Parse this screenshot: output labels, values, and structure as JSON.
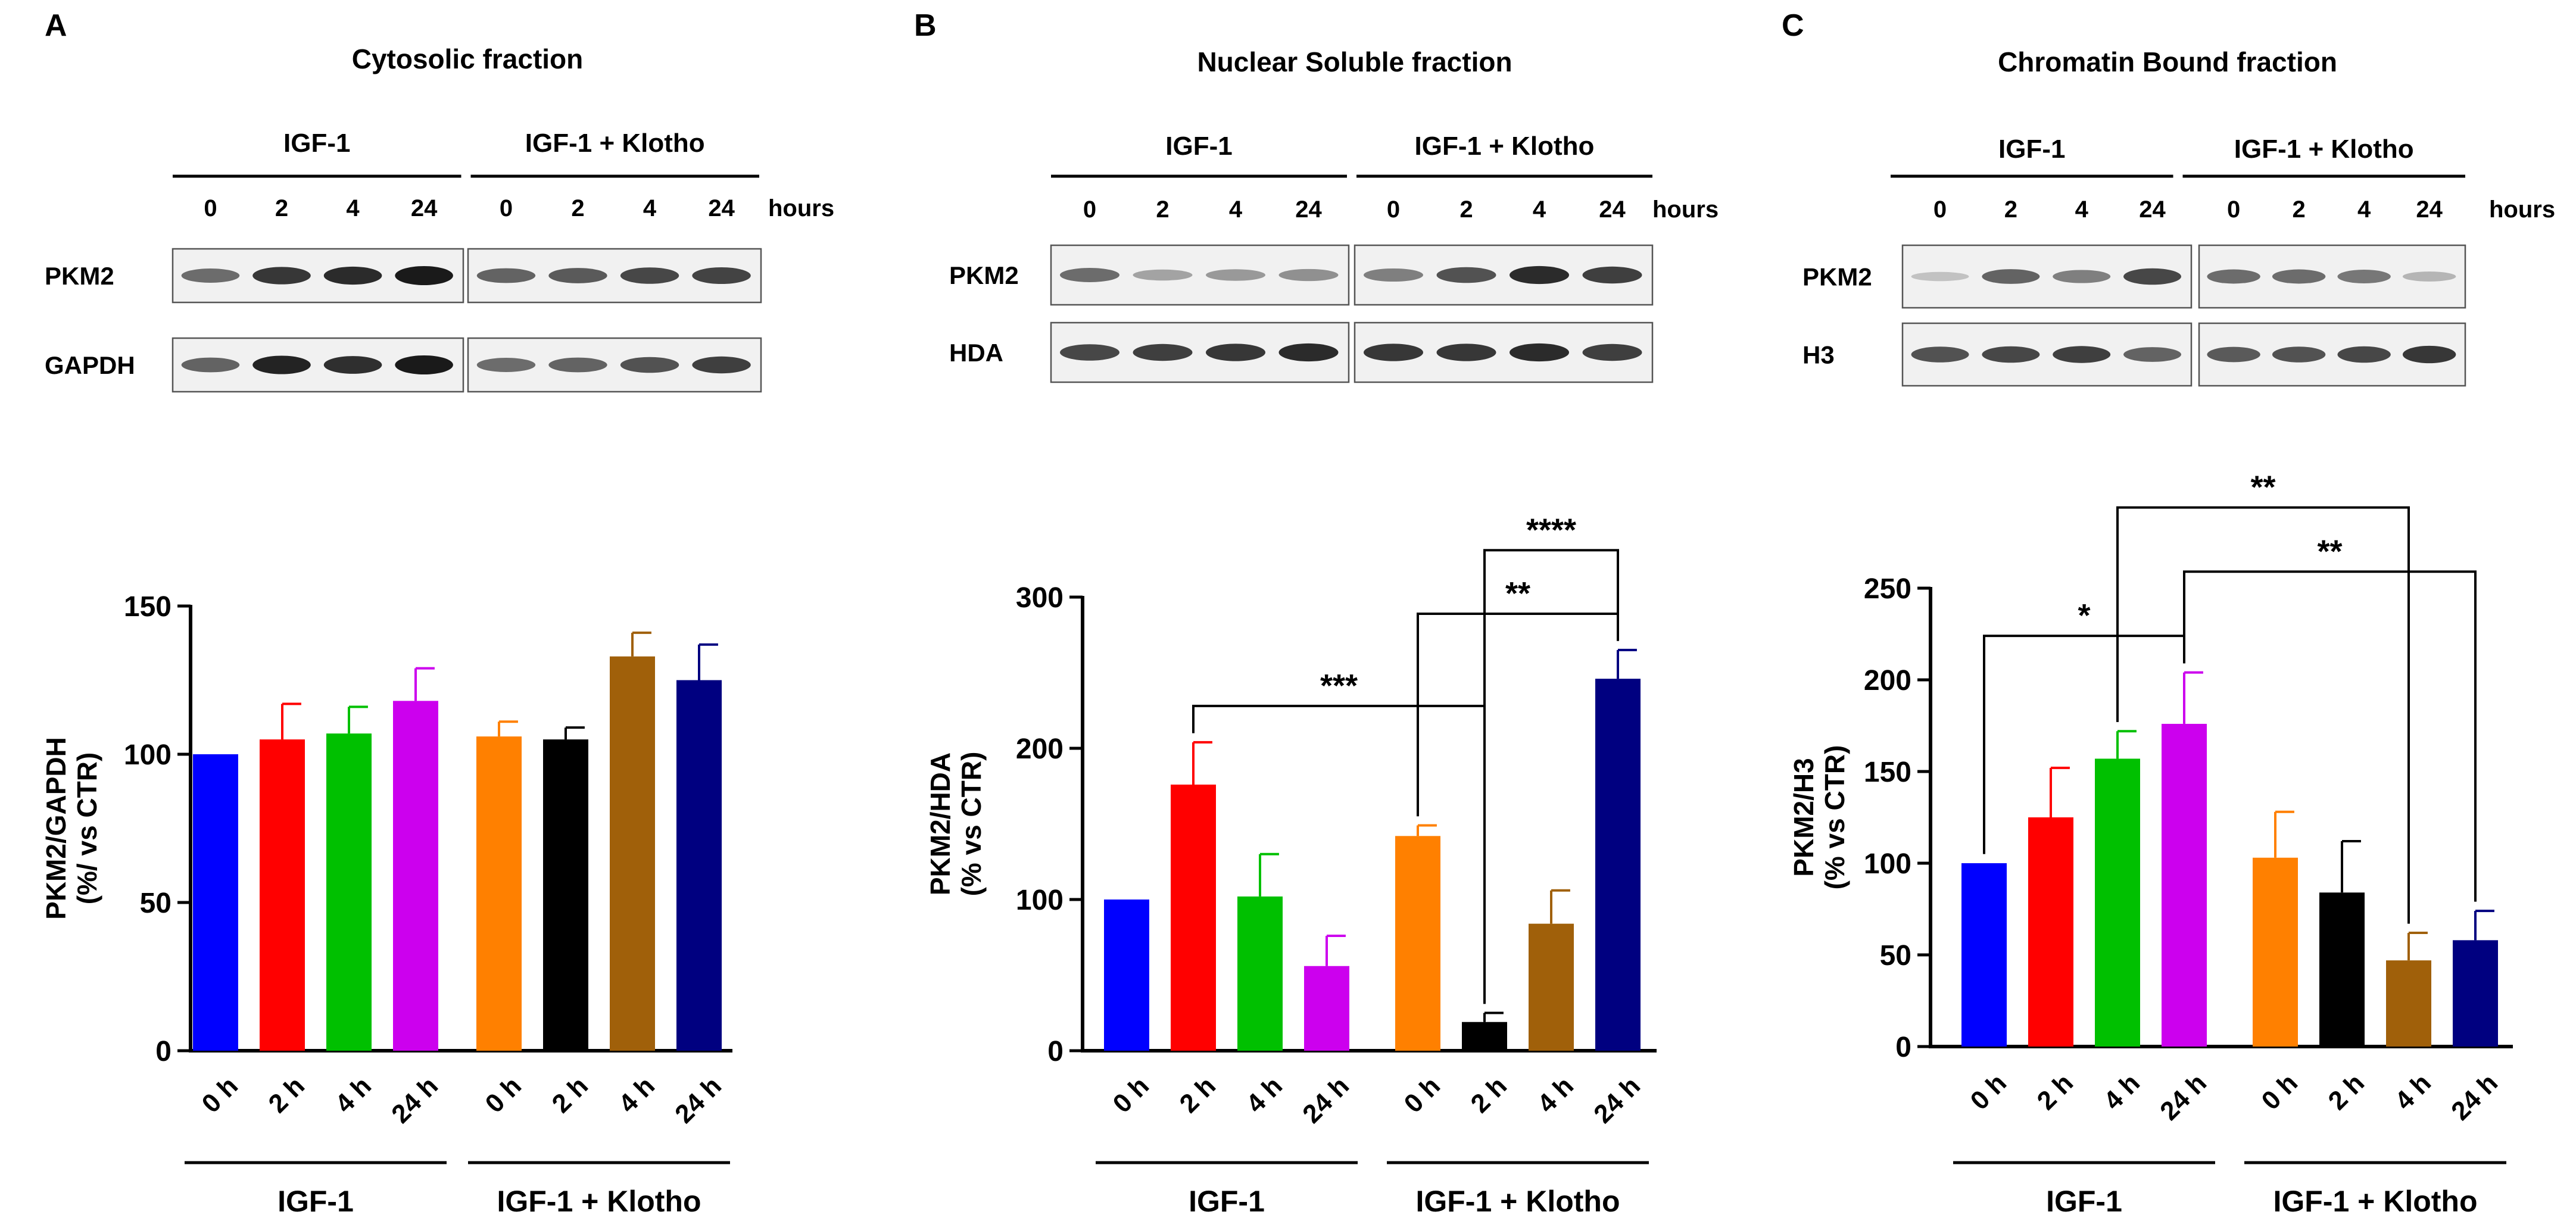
{
  "legend_letters": [
    "A",
    "B",
    "C"
  ],
  "conditions": [
    "IGF-1",
    "IGF-1 + Klotho"
  ],
  "blot_time_labels": [
    "0",
    "2",
    "4",
    "24"
  ],
  "blot_time_unit": "hours",
  "colors": [
    "#0000ff",
    "#ff0000",
    "#00c000",
    "#cc00ee",
    "#ff8000",
    "#000000",
    "#a0600a",
    "#000080"
  ],
  "panels": [
    {
      "letter": "A",
      "blot": {
        "title": "Cytosolic fraction",
        "row_labels": [
          "PKM2",
          "GAPDH"
        ],
        "band_intensity": [
          [
            0.55,
            0.85,
            0.9,
            1.0,
            0.6,
            0.65,
            0.75,
            0.78
          ],
          [
            0.6,
            0.95,
            0.88,
            1.0,
            0.55,
            0.6,
            0.7,
            0.8
          ]
        ]
      },
      "chart_data": {
        "type": "bar",
        "title": "",
        "ylabel_lines": [
          "PKM2/GAPDH",
          "(%/ vs CTR)"
        ],
        "categories": [
          "0 h",
          "2 h",
          "4 h",
          "24 h",
          "0 h",
          "2 h",
          "4 h",
          "24 h"
        ],
        "groups": [
          {
            "name": "IGF-1",
            "indices": [
              0,
              1,
              2,
              3
            ]
          },
          {
            "name": "IGF-1 + Klotho",
            "indices": [
              4,
              5,
              6,
              7
            ]
          }
        ],
        "values": [
          100,
          105,
          107,
          118,
          106,
          105,
          133,
          125
        ],
        "errors": [
          0,
          12,
          9,
          11,
          5,
          4,
          8,
          12
        ],
        "ylim": [
          0,
          150
        ],
        "yticks": [
          0,
          50,
          100,
          150
        ],
        "brackets": []
      }
    },
    {
      "letter": "B",
      "blot": {
        "title": "Nuclear Soluble fraction",
        "row_labels": [
          "PKM2",
          "HDA"
        ],
        "band_intensity": [
          [
            0.55,
            0.25,
            0.3,
            0.35,
            0.45,
            0.7,
            0.9,
            0.8
          ],
          [
            0.75,
            0.8,
            0.85,
            0.9,
            0.85,
            0.85,
            0.9,
            0.8
          ]
        ]
      },
      "chart_data": {
        "type": "bar",
        "title": "",
        "ylabel_lines": [
          "PKM2/HDA",
          "(% vs CTR)"
        ],
        "categories": [
          "0 h",
          "2 h",
          "4 h",
          "24 h",
          "0 h",
          "2 h",
          "4 h",
          "24 h"
        ],
        "groups": [
          {
            "name": "IGF-1",
            "indices": [
              0,
              1,
              2,
              3
            ]
          },
          {
            "name": "IGF-1 + Klotho",
            "indices": [
              4,
              5,
              6,
              7
            ]
          }
        ],
        "values": [
          100,
          176,
          102,
          56,
          142,
          19,
          84,
          246
        ],
        "errors": [
          0,
          28,
          28,
          20,
          7,
          6,
          22,
          19
        ],
        "ylim": [
          0,
          300
        ],
        "yticks": [
          0,
          100,
          200,
          300
        ],
        "brackets": [
          {
            "from": 1,
            "to": 5,
            "label": "***"
          },
          {
            "from": 4,
            "to": 7,
            "label": "**"
          },
          {
            "from": 5,
            "to": 7,
            "label": "****"
          }
        ]
      }
    },
    {
      "letter": "C",
      "blot": {
        "title": "Chromatin Bound fraction",
        "row_labels": [
          "PKM2",
          "H3"
        ],
        "band_intensity": [
          [
            0.08,
            0.6,
            0.45,
            0.75,
            0.55,
            0.55,
            0.5,
            0.15
          ],
          [
            0.7,
            0.75,
            0.8,
            0.6,
            0.65,
            0.7,
            0.75,
            0.85
          ]
        ]
      },
      "chart_data": {
        "type": "bar",
        "title": "",
        "ylabel_lines": [
          "PKM2/H3",
          "(% vs CTR)"
        ],
        "categories": [
          "0 h",
          "2 h",
          "4 h",
          "24 h",
          "0 h",
          "2 h",
          "4 h",
          "24 h"
        ],
        "groups": [
          {
            "name": "IGF-1",
            "indices": [
              0,
              1,
              2,
              3
            ]
          },
          {
            "name": "IGF-1 + Klotho",
            "indices": [
              4,
              5,
              6,
              7
            ]
          }
        ],
        "values": [
          100,
          125,
          157,
          176,
          103,
          84,
          47,
          58
        ],
        "errors": [
          0,
          27,
          15,
          28,
          25,
          28,
          15,
          16
        ],
        "ylim": [
          0,
          250
        ],
        "yticks": [
          0,
          50,
          100,
          150,
          200,
          250
        ],
        "brackets": [
          {
            "from": 0,
            "to": 3,
            "label": "*"
          },
          {
            "from": 3,
            "to": 7,
            "label": "**"
          },
          {
            "from": 2,
            "to": 6,
            "label": "**"
          }
        ]
      }
    }
  ]
}
